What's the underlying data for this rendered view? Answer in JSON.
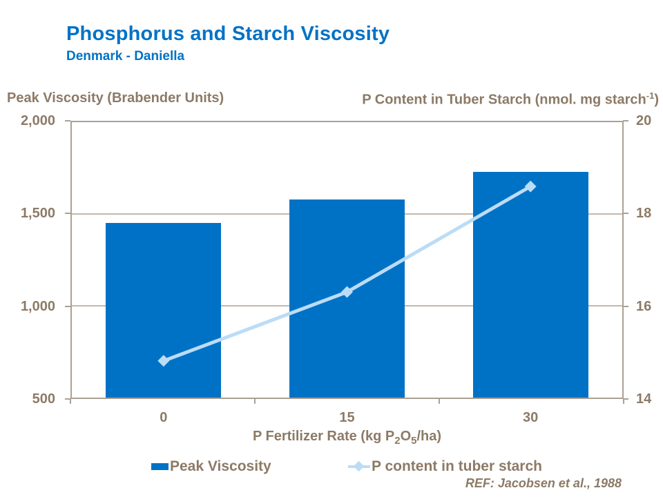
{
  "header": {
    "title": "Phosphorus and Starch Viscosity",
    "subtitle": "Denmark - Daniella"
  },
  "axes": {
    "left_title": "Peak Viscosity (Brabender Units)",
    "right_title_parts": {
      "main": "P Content in Tuber Starch (nmol. mg starch",
      "sup": "-1",
      "close": ")"
    },
    "x_title_parts": {
      "p1": "P Fertilizer Rate (kg P",
      "sub1": "2",
      "p2": "O",
      "sub2": "5",
      "p3": "/ha)"
    }
  },
  "chart_data": {
    "type": "combo",
    "categories": [
      "0",
      "15",
      "30"
    ],
    "series": [
      {
        "name": "Peak Viscosity",
        "chart_type": "bar",
        "axis": "left",
        "values": [
          1450,
          1580,
          1730
        ],
        "color": "#0072C6"
      },
      {
        "name": "P content in tuber starch",
        "chart_type": "line",
        "axis": "right",
        "values": [
          14.8,
          16.3,
          18.6
        ],
        "color": "#BCDCF5",
        "marker": "diamond"
      }
    ],
    "left_axis": {
      "title": "Peak Viscosity (Brabender Units)",
      "min": 500,
      "max": 2000,
      "tick_values": [
        2000,
        1500,
        1000,
        500
      ],
      "tick_labels": [
        "2,000",
        "1,500",
        "1,000",
        "500"
      ]
    },
    "right_axis": {
      "title": "P Content in Tuber Starch (nmol. mg starch-1)",
      "min": 14,
      "max": 20,
      "tick_values": [
        20,
        18,
        16,
        14
      ],
      "tick_labels": [
        "20",
        "18",
        "16",
        "14"
      ]
    },
    "x_axis_title": "P Fertilizer Rate (kg P2O5/ha)",
    "grid": true,
    "legend_position": "bottom"
  },
  "legend": {
    "items": [
      {
        "label": "Peak Viscosity",
        "swatch": "bar"
      },
      {
        "label": "P content in tuber starch",
        "swatch": "line-diamond"
      }
    ]
  },
  "footer": {
    "ref": "REF: Jacobsen et al., 1988"
  },
  "colors": {
    "accent_blue": "#0072C6",
    "line_light_blue": "#BCDCF5",
    "label_taupe": "#8C7A66",
    "gridline": "#C2B8AC",
    "axis_frame": "#ABA093"
  }
}
